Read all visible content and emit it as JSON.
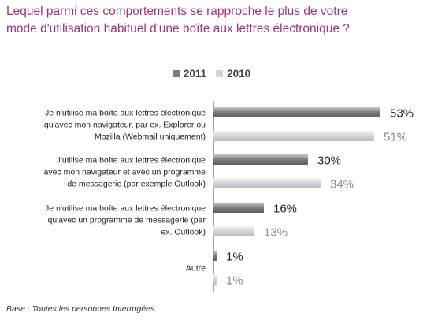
{
  "title": {
    "line1": "Lequel parmi ces comportements se rapproche le plus de votre",
    "line2": "mode d'utilisation habituel d'une boîte aux lettres électronique ?"
  },
  "colors": {
    "title": "#a0327a",
    "series_2011": "#7d7d80",
    "series_2010": "#d2d4d8",
    "label_2011": "#222222",
    "label_2010": "#8a8a8a",
    "axis": "#666666"
  },
  "footnote": "Base : Toutes les personnes Interrogées",
  "chart_data": {
    "type": "bar",
    "orientation": "horizontal",
    "legend_position": "top-center",
    "grid": false,
    "categories": [
      [
        "Je n'utilise ma boîte aux lettres électronique",
        "qu'avec mon navigateur, par ex. Explorer ou",
        "Mozilla (Webmail uniquement)"
      ],
      [
        "J'utilise ma boîte aux lettres électronique",
        "avec mon navigateur et avec un programme",
        "de messagerie (par exemple Outlook)"
      ],
      [
        "Je n'utilise ma boîte aux lettres électronique",
        "qu'avec un programme de messagerie (par",
        "ex. Outlook)"
      ],
      [
        "Autre"
      ]
    ],
    "series": [
      {
        "name": "2011",
        "values": [
          53,
          30,
          16,
          1
        ],
        "labels": [
          "53%",
          "30%",
          "16%",
          "1%"
        ]
      },
      {
        "name": "2010",
        "values": [
          51,
          34,
          13,
          1
        ],
        "labels": [
          "51%",
          "34%",
          "13%",
          "1%"
        ]
      }
    ],
    "xlim": [
      0,
      100
    ]
  }
}
